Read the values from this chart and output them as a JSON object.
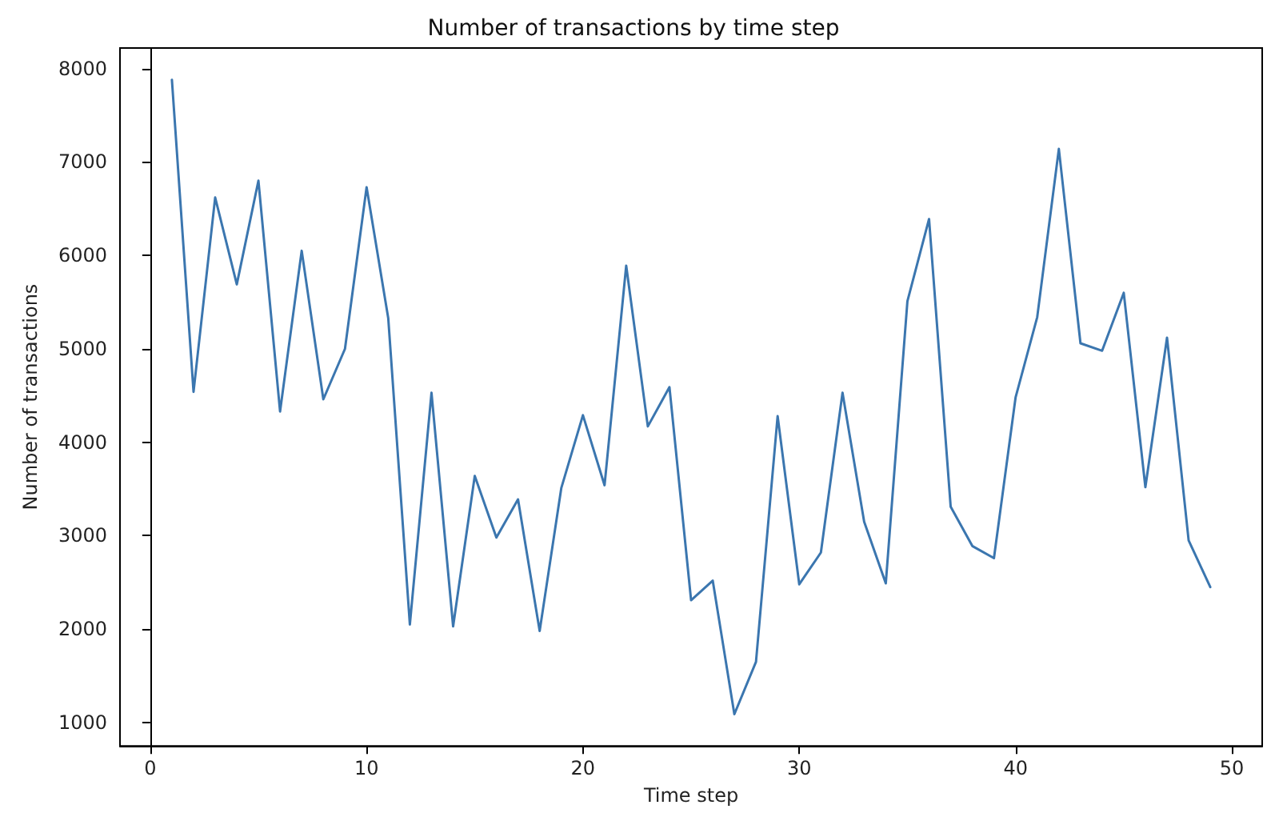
{
  "chart_data": {
    "type": "line",
    "title": "Number of transactions by time step",
    "xlabel": "Time step",
    "ylabel": "Number of transactions",
    "x": [
      1,
      2,
      3,
      4,
      5,
      6,
      7,
      8,
      9,
      10,
      11,
      12,
      13,
      14,
      15,
      16,
      17,
      18,
      19,
      20,
      21,
      22,
      23,
      24,
      25,
      26,
      27,
      28,
      29,
      30,
      31,
      32,
      33,
      34,
      35,
      36,
      37,
      38,
      39,
      40,
      41,
      42,
      43,
      44,
      45,
      46,
      47,
      48,
      49
    ],
    "series": [
      {
        "color": "#3b76af",
        "values": [
          7880,
          4540,
          6620,
          5690,
          6800,
          4330,
          6050,
          4460,
          5000,
          6730,
          5330,
          2050,
          4530,
          2030,
          3640,
          2980,
          3390,
          1980,
          3510,
          4290,
          3540,
          5890,
          4170,
          4590,
          2310,
          2520,
          1090,
          1650,
          4280,
          2480,
          2820,
          4530,
          3150,
          2490,
          5510,
          6390,
          3310,
          2890,
          2760,
          4480,
          5340,
          7140,
          5060,
          4980,
          5600,
          3520,
          5120,
          2950,
          2450
        ]
      }
    ],
    "xlim": [
      -1.4,
      51.4
    ],
    "xticks": [
      0,
      10,
      20,
      30,
      40,
      50
    ],
    "ylim": [
      750,
      8220
    ],
    "yticks": [
      1000,
      2000,
      3000,
      4000,
      5000,
      6000,
      7000,
      8000
    ],
    "marker": "none",
    "line_style": "solid"
  }
}
